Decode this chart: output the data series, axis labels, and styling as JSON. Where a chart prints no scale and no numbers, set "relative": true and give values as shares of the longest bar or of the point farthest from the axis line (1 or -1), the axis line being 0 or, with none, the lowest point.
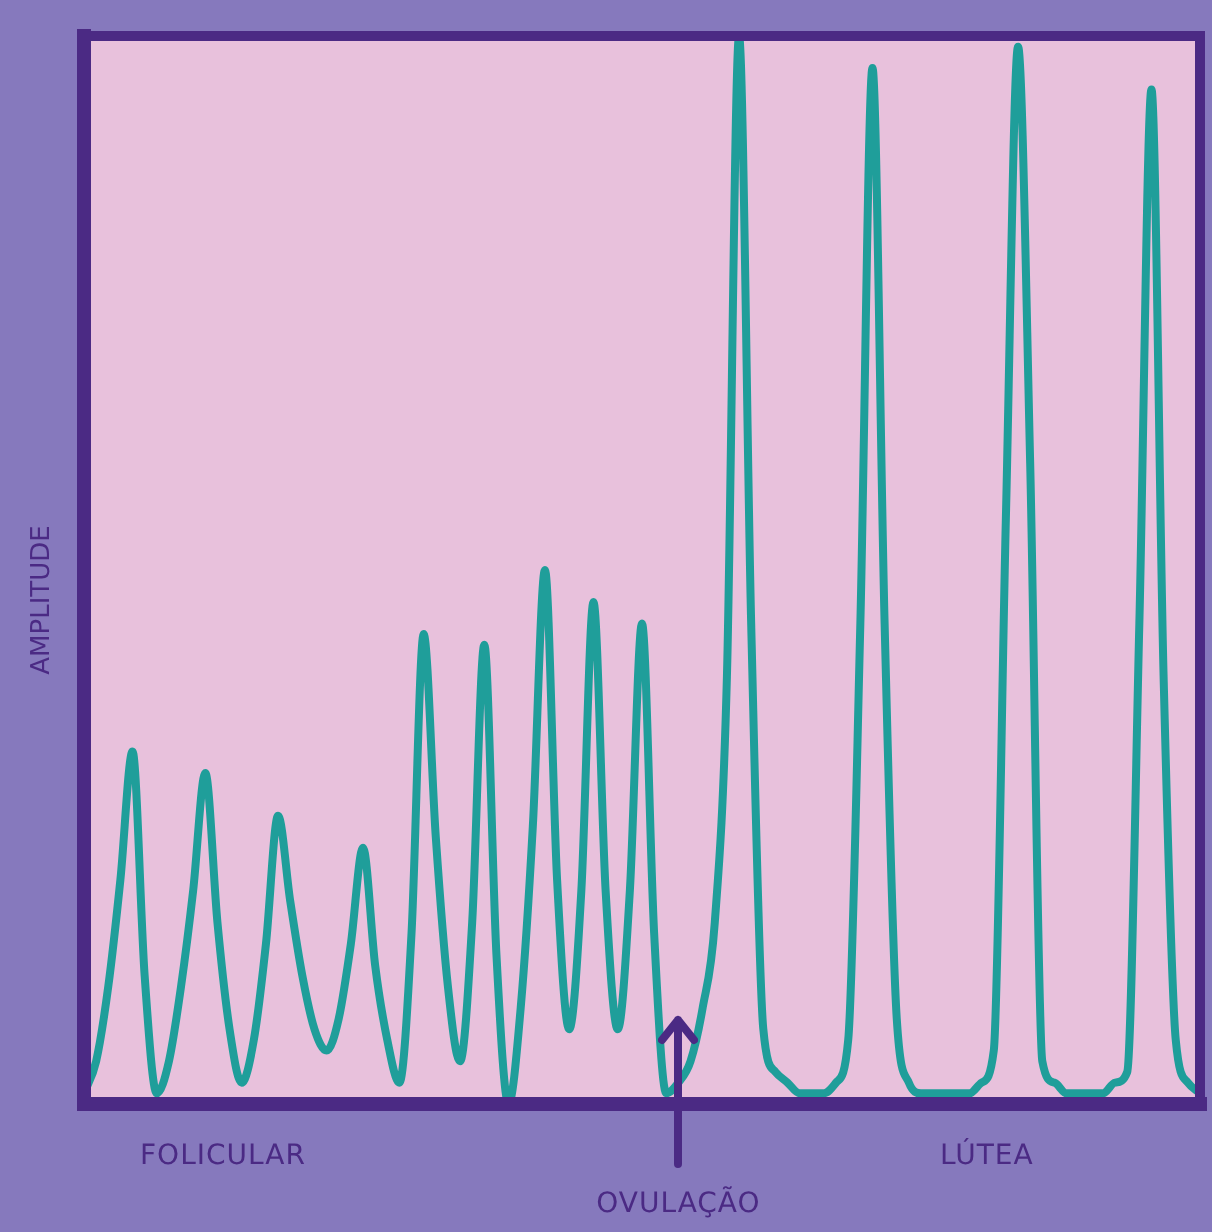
{
  "chart_data": {
    "type": "line",
    "relative": true,
    "ylabel": "AMPLITUDE",
    "annotations": [
      "FOLICULAR",
      "OVULAÇÃO",
      "LÚTEA"
    ],
    "categories": [
      null,
      null,
      null,
      null,
      null,
      null,
      null,
      null,
      null,
      null,
      null,
      null,
      null,
      null,
      null,
      null,
      null,
      null,
      null,
      null,
      null,
      null,
      null,
      null,
      null,
      null,
      null,
      null,
      null,
      null,
      null,
      null,
      null,
      null,
      null,
      null,
      null,
      null,
      null,
      null,
      null,
      null,
      null,
      null,
      null,
      null,
      null,
      null,
      null,
      null,
      null,
      null,
      null,
      null,
      null,
      null,
      null,
      null,
      null,
      null,
      null,
      null,
      null,
      null,
      null,
      null,
      null,
      null,
      null,
      null,
      null,
      null,
      null,
      null,
      null,
      null,
      null,
      null,
      null,
      null,
      null,
      null,
      null,
      null,
      null,
      null,
      null,
      null,
      null,
      null,
      null,
      null,
      null
    ],
    "series": [
      {
        "color": "#1f9e9a",
        "values": [
          0.01,
          0.04,
          0.11,
          0.21,
          0.33,
          0.12,
          0.01,
          0.04,
          0.11,
          0.2,
          0.31,
          0.17,
          0.07,
          0.02,
          0.06,
          0.15,
          0.27,
          0.19,
          0.12,
          0.07,
          0.05,
          0.08,
          0.15,
          0.24,
          0.13,
          0.06,
          0.02,
          0.16,
          0.44,
          0.25,
          0.11,
          0.04,
          0.17,
          0.43,
          0.14,
          0.0,
          0.09,
          0.26,
          0.5,
          0.21,
          0.07,
          0.2,
          0.47,
          0.2,
          0.07,
          0.2,
          0.45,
          0.16,
          0.01,
          0.02,
          0.04,
          0.09,
          0.17,
          0.4,
          1.0,
          0.45,
          0.07,
          0.03,
          0.02,
          0.01,
          0.01,
          0.01,
          0.02,
          0.06,
          0.45,
          0.97,
          0.45,
          0.08,
          0.02,
          0.01,
          0.01,
          0.01,
          0.01,
          0.01,
          0.02,
          0.05,
          0.55,
          0.99,
          0.6,
          0.04,
          0.02,
          0.01,
          0.01,
          0.01,
          0.01,
          0.02,
          0.03,
          0.45,
          0.95,
          0.4,
          0.06,
          0.02,
          0.01
        ]
      }
    ]
  }
}
